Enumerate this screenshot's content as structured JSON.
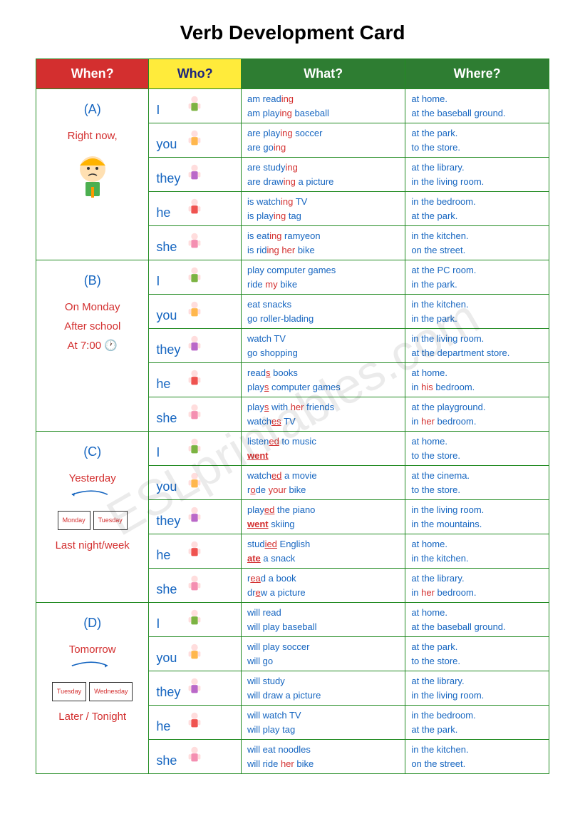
{
  "title": "Verb Development Card",
  "headers": {
    "when": "When?",
    "who": "Who?",
    "what": "What?",
    "where": "Where?"
  },
  "sections": [
    {
      "letter": "(A)",
      "when_lines": [
        "Right now,"
      ],
      "rows": [
        {
          "who": "I",
          "what": [
            [
              "am read",
              "ing",
              ""
            ],
            [
              "am play",
              "ing",
              " baseball"
            ]
          ],
          "where": [
            [
              "at",
              " home."
            ],
            [
              "at the",
              " baseball ground."
            ]
          ]
        },
        {
          "who": "you",
          "what": [
            [
              "are play",
              "ing",
              " soccer"
            ],
            [
              "are go",
              "ing",
              ""
            ]
          ],
          "where": [
            [
              "at the",
              " park."
            ],
            [
              "to the",
              " store."
            ]
          ]
        },
        {
          "who": "they",
          "what": [
            [
              "are study",
              "ing",
              ""
            ],
            [
              "are draw",
              "ing",
              " a picture"
            ]
          ],
          "where": [
            [
              "at the",
              " library."
            ],
            [
              "in the",
              " living room."
            ]
          ]
        },
        {
          "who": "he",
          "what": [
            [
              "is watch",
              "ing",
              " TV"
            ],
            [
              "is play",
              "ing",
              " tag"
            ]
          ],
          "where": [
            [
              "in the",
              " bedroom."
            ],
            [
              "at the",
              " park."
            ]
          ]
        },
        {
          "who": "she",
          "what": [
            [
              "is eat",
              "ing",
              " ramyeon"
            ],
            [
              "is rid",
              "ing",
              " ",
              "her",
              " bike"
            ]
          ],
          "where": [
            [
              "in the",
              " kitchen."
            ],
            [
              "on the",
              " street."
            ]
          ]
        }
      ]
    },
    {
      "letter": "(B)",
      "when_lines": [
        "On Monday",
        "After school",
        "At 7:00 🕐"
      ],
      "rows": [
        {
          "who": "I",
          "what": [
            [
              "play computer games"
            ],
            [
              "ride ",
              "my",
              " bike"
            ]
          ],
          "where": [
            [
              "at the",
              " PC room."
            ],
            [
              "in the",
              " park."
            ]
          ]
        },
        {
          "who": "you",
          "what": [
            [
              "eat snacks"
            ],
            [
              "go roller-blading"
            ]
          ],
          "where": [
            [
              "in the",
              " kitchen."
            ],
            [
              "in the",
              " park."
            ]
          ]
        },
        {
          "who": "they",
          "what": [
            [
              "watch TV"
            ],
            [
              "go shopping"
            ]
          ],
          "where": [
            [
              "in the",
              " living room."
            ],
            [
              "at the",
              " department store."
            ]
          ]
        },
        {
          "who": "he",
          "what": [
            [
              "read",
              "s_ul",
              " books"
            ],
            [
              "play",
              "s_ul",
              " computer games"
            ]
          ],
          "where": [
            [
              "at",
              " home."
            ],
            [
              "in ",
              "his",
              " bedroom."
            ]
          ]
        },
        {
          "who": "she",
          "what": [
            [
              "play",
              "s_ul",
              " with ",
              "her",
              " friends"
            ],
            [
              "watch",
              "es_ul",
              " TV"
            ]
          ],
          "where": [
            [
              "at the",
              " playground."
            ],
            [
              "in ",
              "her",
              " bedroom."
            ]
          ]
        }
      ]
    },
    {
      "letter": "(C)",
      "when_lines": [
        "Yesterday"
      ],
      "when_lines2": [
        "Last night/week"
      ],
      "days": [
        "Monday",
        "Tuesday"
      ],
      "rows": [
        {
          "who": "I",
          "what": [
            [
              "listen",
              "ed_ul",
              " to music"
            ],
            [
              "",
              "went_b",
              ""
            ]
          ],
          "where": [
            [
              "at",
              " home."
            ],
            [
              "to the",
              " store."
            ]
          ]
        },
        {
          "who": "you",
          "what": [
            [
              "watch",
              "ed_ul",
              " a movie"
            ],
            [
              "r",
              "o_ul",
              "de ",
              "your",
              " bike"
            ]
          ],
          "where": [
            [
              "at the",
              " cinema."
            ],
            [
              "to the",
              " store."
            ]
          ]
        },
        {
          "who": "they",
          "what": [
            [
              "play",
              "ed_ul",
              " the piano"
            ],
            [
              "",
              "went_b",
              " skiing"
            ]
          ],
          "where": [
            [
              "in the",
              " living room."
            ],
            [
              "in the",
              " mountains."
            ]
          ]
        },
        {
          "who": "he",
          "what": [
            [
              "stud",
              "ied_ul",
              " English"
            ],
            [
              "",
              "ate_b",
              " a snack"
            ]
          ],
          "where": [
            [
              "at",
              " home."
            ],
            [
              "in the",
              " kitchen."
            ]
          ]
        },
        {
          "who": "she",
          "what": [
            [
              "r",
              "ea_ul",
              "d a book"
            ],
            [
              "dr",
              "e_ul",
              "w a picture"
            ]
          ],
          "where": [
            [
              "at the",
              " library."
            ],
            [
              "in ",
              "her",
              " bedroom."
            ]
          ]
        }
      ]
    },
    {
      "letter": "(D)",
      "when_lines": [
        "Tomorrow"
      ],
      "when_lines2": [
        "Later / Tonight"
      ],
      "days": [
        "Tuesday",
        "Wednesday"
      ],
      "rows": [
        {
          "who": "I",
          "what": [
            [
              "will read"
            ],
            [
              "will play baseball"
            ]
          ],
          "where": [
            [
              "at",
              " home."
            ],
            [
              "at the",
              " baseball ground."
            ]
          ]
        },
        {
          "who": "you",
          "what": [
            [
              "will play soccer"
            ],
            [
              "will go"
            ]
          ],
          "where": [
            [
              "at the",
              " park."
            ],
            [
              "to the",
              " store."
            ]
          ]
        },
        {
          "who": "they",
          "what": [
            [
              "will study"
            ],
            [
              "will draw a picture"
            ]
          ],
          "where": [
            [
              "at the",
              " library."
            ],
            [
              "in the",
              " living room."
            ]
          ]
        },
        {
          "who": "he",
          "what": [
            [
              "will watch TV"
            ],
            [
              "will play tag"
            ]
          ],
          "where": [
            [
              "in the",
              " bedroom."
            ],
            [
              "at the",
              " park."
            ]
          ]
        },
        {
          "who": "she",
          "what": [
            [
              "will eat noodles"
            ],
            [
              "will ride ",
              "her",
              " bike"
            ]
          ],
          "where": [
            [
              "in the",
              " kitchen."
            ],
            [
              "on the",
              " street."
            ]
          ]
        }
      ]
    }
  ],
  "watermark": "ESLprintables.com",
  "colors": {
    "red": "#d32f2f",
    "yellow": "#ffeb3b",
    "green_header": "#2e7d32",
    "green_border": "#228B22",
    "blue_text": "#1565c0"
  },
  "person_colors": {
    "I": "#7cb342",
    "you": "#ffb74d",
    "they": "#ba68c8",
    "he": "#ef5350",
    "she": "#f48fb1"
  }
}
